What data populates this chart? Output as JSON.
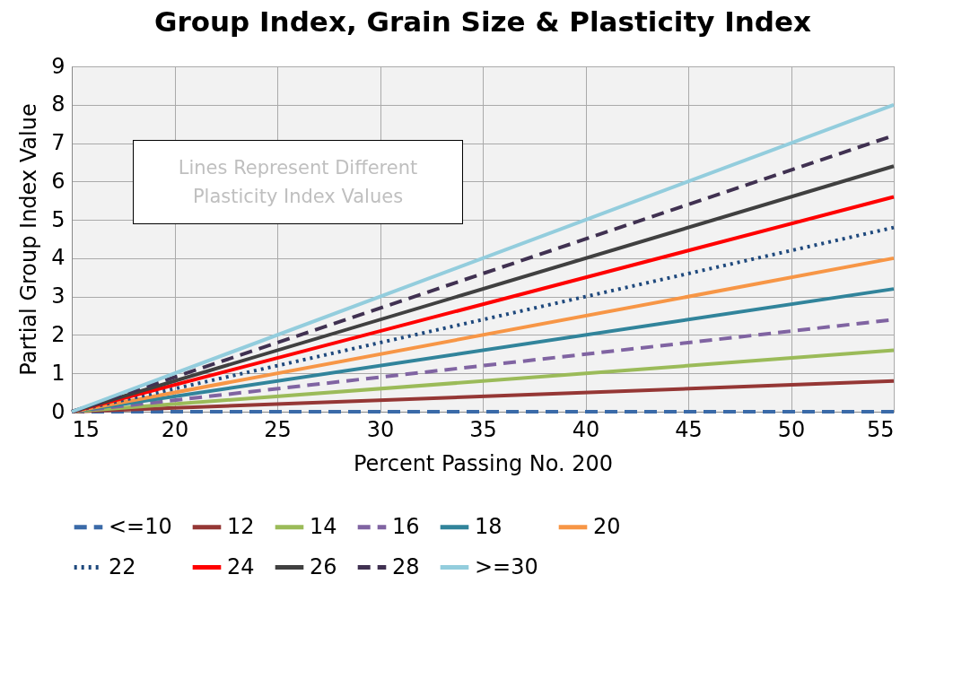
{
  "chart_data": {
    "type": "line",
    "title": "Group Index, Grain Size & Plasticity Index",
    "xlabel": "Percent Passing No. 200",
    "ylabel": "Partial Group Index Value",
    "x": [
      15,
      55
    ],
    "xlim": [
      15,
      55
    ],
    "xticks": [
      15,
      20,
      25,
      30,
      35,
      40,
      45,
      50,
      55
    ],
    "ylim": [
      0,
      9
    ],
    "yticks": [
      0,
      1,
      2,
      3,
      4,
      5,
      6,
      7,
      8,
      9
    ],
    "grid": true,
    "legend": "bottom",
    "marker": "none",
    "annotations": [
      "Lines Represent Different Plasticity Index Values"
    ],
    "series": [
      {
        "name": "<=10",
        "color": "#3a6aa8",
        "line_style": "dashed",
        "values": [
          0,
          0
        ]
      },
      {
        "name": "12",
        "color": "#953735",
        "line_style": "solid",
        "values": [
          0,
          0.8
        ]
      },
      {
        "name": "14",
        "color": "#9bbb59",
        "line_style": "solid",
        "values": [
          0,
          1.6
        ]
      },
      {
        "name": "16",
        "color": "#8064a2",
        "line_style": "dashed",
        "values": [
          0,
          2.4
        ]
      },
      {
        "name": "18",
        "color": "#31849b",
        "line_style": "solid",
        "values": [
          0,
          3.2
        ]
      },
      {
        "name": "20",
        "color": "#f79646",
        "line_style": "solid",
        "values": [
          0,
          4.0
        ]
      },
      {
        "name": "22",
        "color": "#1f497d",
        "line_style": "dotted",
        "values": [
          0,
          4.8
        ]
      },
      {
        "name": "24",
        "color": "#ff0000",
        "line_style": "solid",
        "values": [
          0,
          5.6
        ]
      },
      {
        "name": "26",
        "color": "#404040",
        "line_style": "solid",
        "values": [
          0,
          6.4
        ]
      },
      {
        "name": "28",
        "color": "#403151",
        "line_style": "dashed",
        "values": [
          0,
          7.2
        ]
      },
      {
        "name": ">=30",
        "color": "#93cddd",
        "line_style": "solid",
        "values": [
          0,
          8.0
        ]
      }
    ]
  }
}
